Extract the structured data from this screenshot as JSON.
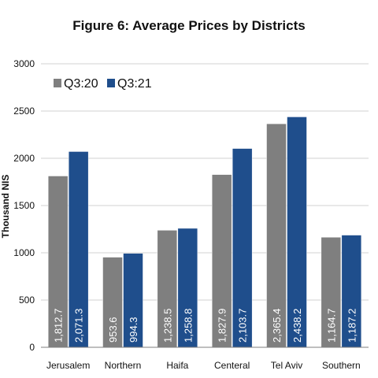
{
  "chart_data": {
    "type": "bar",
    "title": "Figure 6: Average Prices by Districts",
    "ylabel": "Thousand NIS",
    "xlabel": "",
    "categories": [
      "Jerusalem",
      "Northern",
      "Haifa",
      "Centeral",
      "Tel Aviv",
      "Southern"
    ],
    "series": [
      {
        "name": "Q3:20",
        "color": "#7f7f7f",
        "values": [
          1812.7,
          953.6,
          1238.5,
          1827.9,
          2365.4,
          1164.7
        ],
        "labels": [
          "1,812.7",
          "953.6",
          "1,238.5",
          "1,827.9",
          "2,365.4",
          "1,164.7"
        ]
      },
      {
        "name": "Q3:21",
        "color": "#1f4e8c",
        "values": [
          2071.3,
          994.3,
          1258.8,
          2103.7,
          2438.2,
          1187.2
        ],
        "labels": [
          "2,071.3",
          "994.3",
          "1,258.8",
          "2,103.7",
          "2,438.2",
          "1,187.2"
        ]
      }
    ],
    "ylim": [
      0,
      3000
    ],
    "yticks": [
      0,
      500,
      1000,
      1500,
      2000,
      2500,
      3000
    ],
    "ytick_labels": [
      "0",
      "500",
      "1000",
      "1500",
      "2000",
      "2500",
      "3000"
    ],
    "grid": true,
    "legend_position": "top-left"
  }
}
